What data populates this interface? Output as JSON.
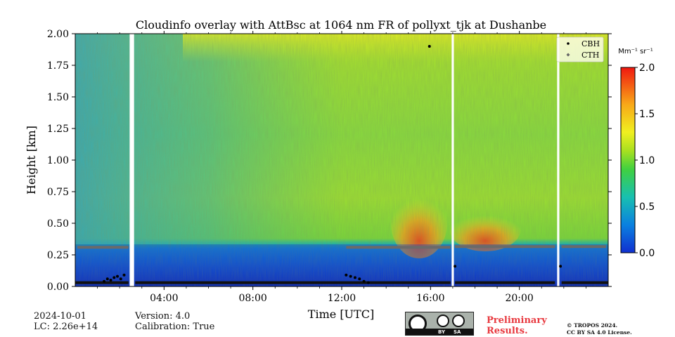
{
  "chart_data": {
    "type": "heatmap",
    "title": "Cloudinfo overlay with AttBsc at 1064 nm FR of pollyxt_tjk at Dushanbe",
    "xlabel": "Time [UTC]",
    "ylabel": "Height [km]",
    "xlim_hours": [
      0,
      24
    ],
    "ylim": [
      0,
      2.0
    ],
    "x_ticks": [
      {
        "value": 4,
        "label": "04:00"
      },
      {
        "value": 8,
        "label": "08:00"
      },
      {
        "value": 12,
        "label": "12:00"
      },
      {
        "value": 16,
        "label": "16:00"
      },
      {
        "value": 20,
        "label": "20:00"
      }
    ],
    "y_ticks": [
      {
        "value": 0.0,
        "label": "0.00"
      },
      {
        "value": 0.25,
        "label": "0.25"
      },
      {
        "value": 0.5,
        "label": "0.50"
      },
      {
        "value": 0.75,
        "label": "0.75"
      },
      {
        "value": 1.0,
        "label": "1.00"
      },
      {
        "value": 1.25,
        "label": "1.25"
      },
      {
        "value": 1.5,
        "label": "1.50"
      },
      {
        "value": 1.75,
        "label": "1.75"
      },
      {
        "value": 2.0,
        "label": "2.00"
      }
    ],
    "colorbar": {
      "unit": "Mm⁻¹ sr⁻¹",
      "min": 0.0,
      "max": 2.0,
      "ticks": [
        {
          "value": 0.0,
          "label": "0.0"
        },
        {
          "value": 0.5,
          "label": "0.5"
        },
        {
          "value": 1.0,
          "label": "1.0"
        },
        {
          "value": 1.5,
          "label": "1.5"
        },
        {
          "value": 2.0,
          "label": "2.0"
        }
      ]
    },
    "legend": {
      "location": "top-right",
      "entries": [
        {
          "name": "CBH",
          "color": "#000000"
        },
        {
          "name": "CTH",
          "color": "#555555"
        }
      ]
    },
    "data_gaps_hours": [
      [
        2.45,
        2.65
      ],
      [
        16.95,
        17.05
      ],
      [
        21.7,
        21.8
      ]
    ],
    "cth_segments": [
      {
        "start": 0.1,
        "end": 2.4,
        "height": 0.31
      },
      {
        "start": 12.2,
        "end": 16.9,
        "height": 0.31
      },
      {
        "start": 17.1,
        "end": 21.6,
        "height": 0.315
      },
      {
        "start": 21.9,
        "end": 23.9,
        "height": 0.315
      }
    ],
    "cbh_points": [
      {
        "time": 1.3,
        "height": 0.04
      },
      {
        "time": 1.45,
        "height": 0.06
      },
      {
        "time": 1.6,
        "height": 0.05
      },
      {
        "time": 1.75,
        "height": 0.07
      },
      {
        "time": 1.9,
        "height": 0.08
      },
      {
        "time": 2.05,
        "height": 0.06
      },
      {
        "time": 2.2,
        "height": 0.09
      },
      {
        "time": 12.2,
        "height": 0.09
      },
      {
        "time": 12.4,
        "height": 0.08
      },
      {
        "time": 12.6,
        "height": 0.07
      },
      {
        "time": 12.8,
        "height": 0.06
      },
      {
        "time": 13.0,
        "height": 0.04
      },
      {
        "time": 13.2,
        "height": 0.03
      },
      {
        "time": 15.95,
        "height": 1.9
      },
      {
        "time": 17.1,
        "height": 0.16
      },
      {
        "time": 21.85,
        "height": 0.16
      }
    ],
    "cbh_baseline": [
      {
        "start": 0.0,
        "end": 2.4,
        "height": 0.03
      },
      {
        "start": 2.7,
        "end": 16.9,
        "height": 0.03
      },
      {
        "start": 17.1,
        "end": 21.6,
        "height": 0.03
      },
      {
        "start": 21.9,
        "end": 24.0,
        "height": 0.03
      }
    ]
  },
  "footer": {
    "date": "2024-10-01",
    "lc": "LC: 2.26e+14",
    "version": "Version: 4.0",
    "calibration": "Calibration: True",
    "preliminary_line1": "Preliminary",
    "preliminary_line2": "Results.",
    "copyright_line1": "© TROPOS 2024.",
    "copyright_line2": "CC BY SA 4.0 License.",
    "cc_by": "BY",
    "cc_sa": "SA"
  }
}
